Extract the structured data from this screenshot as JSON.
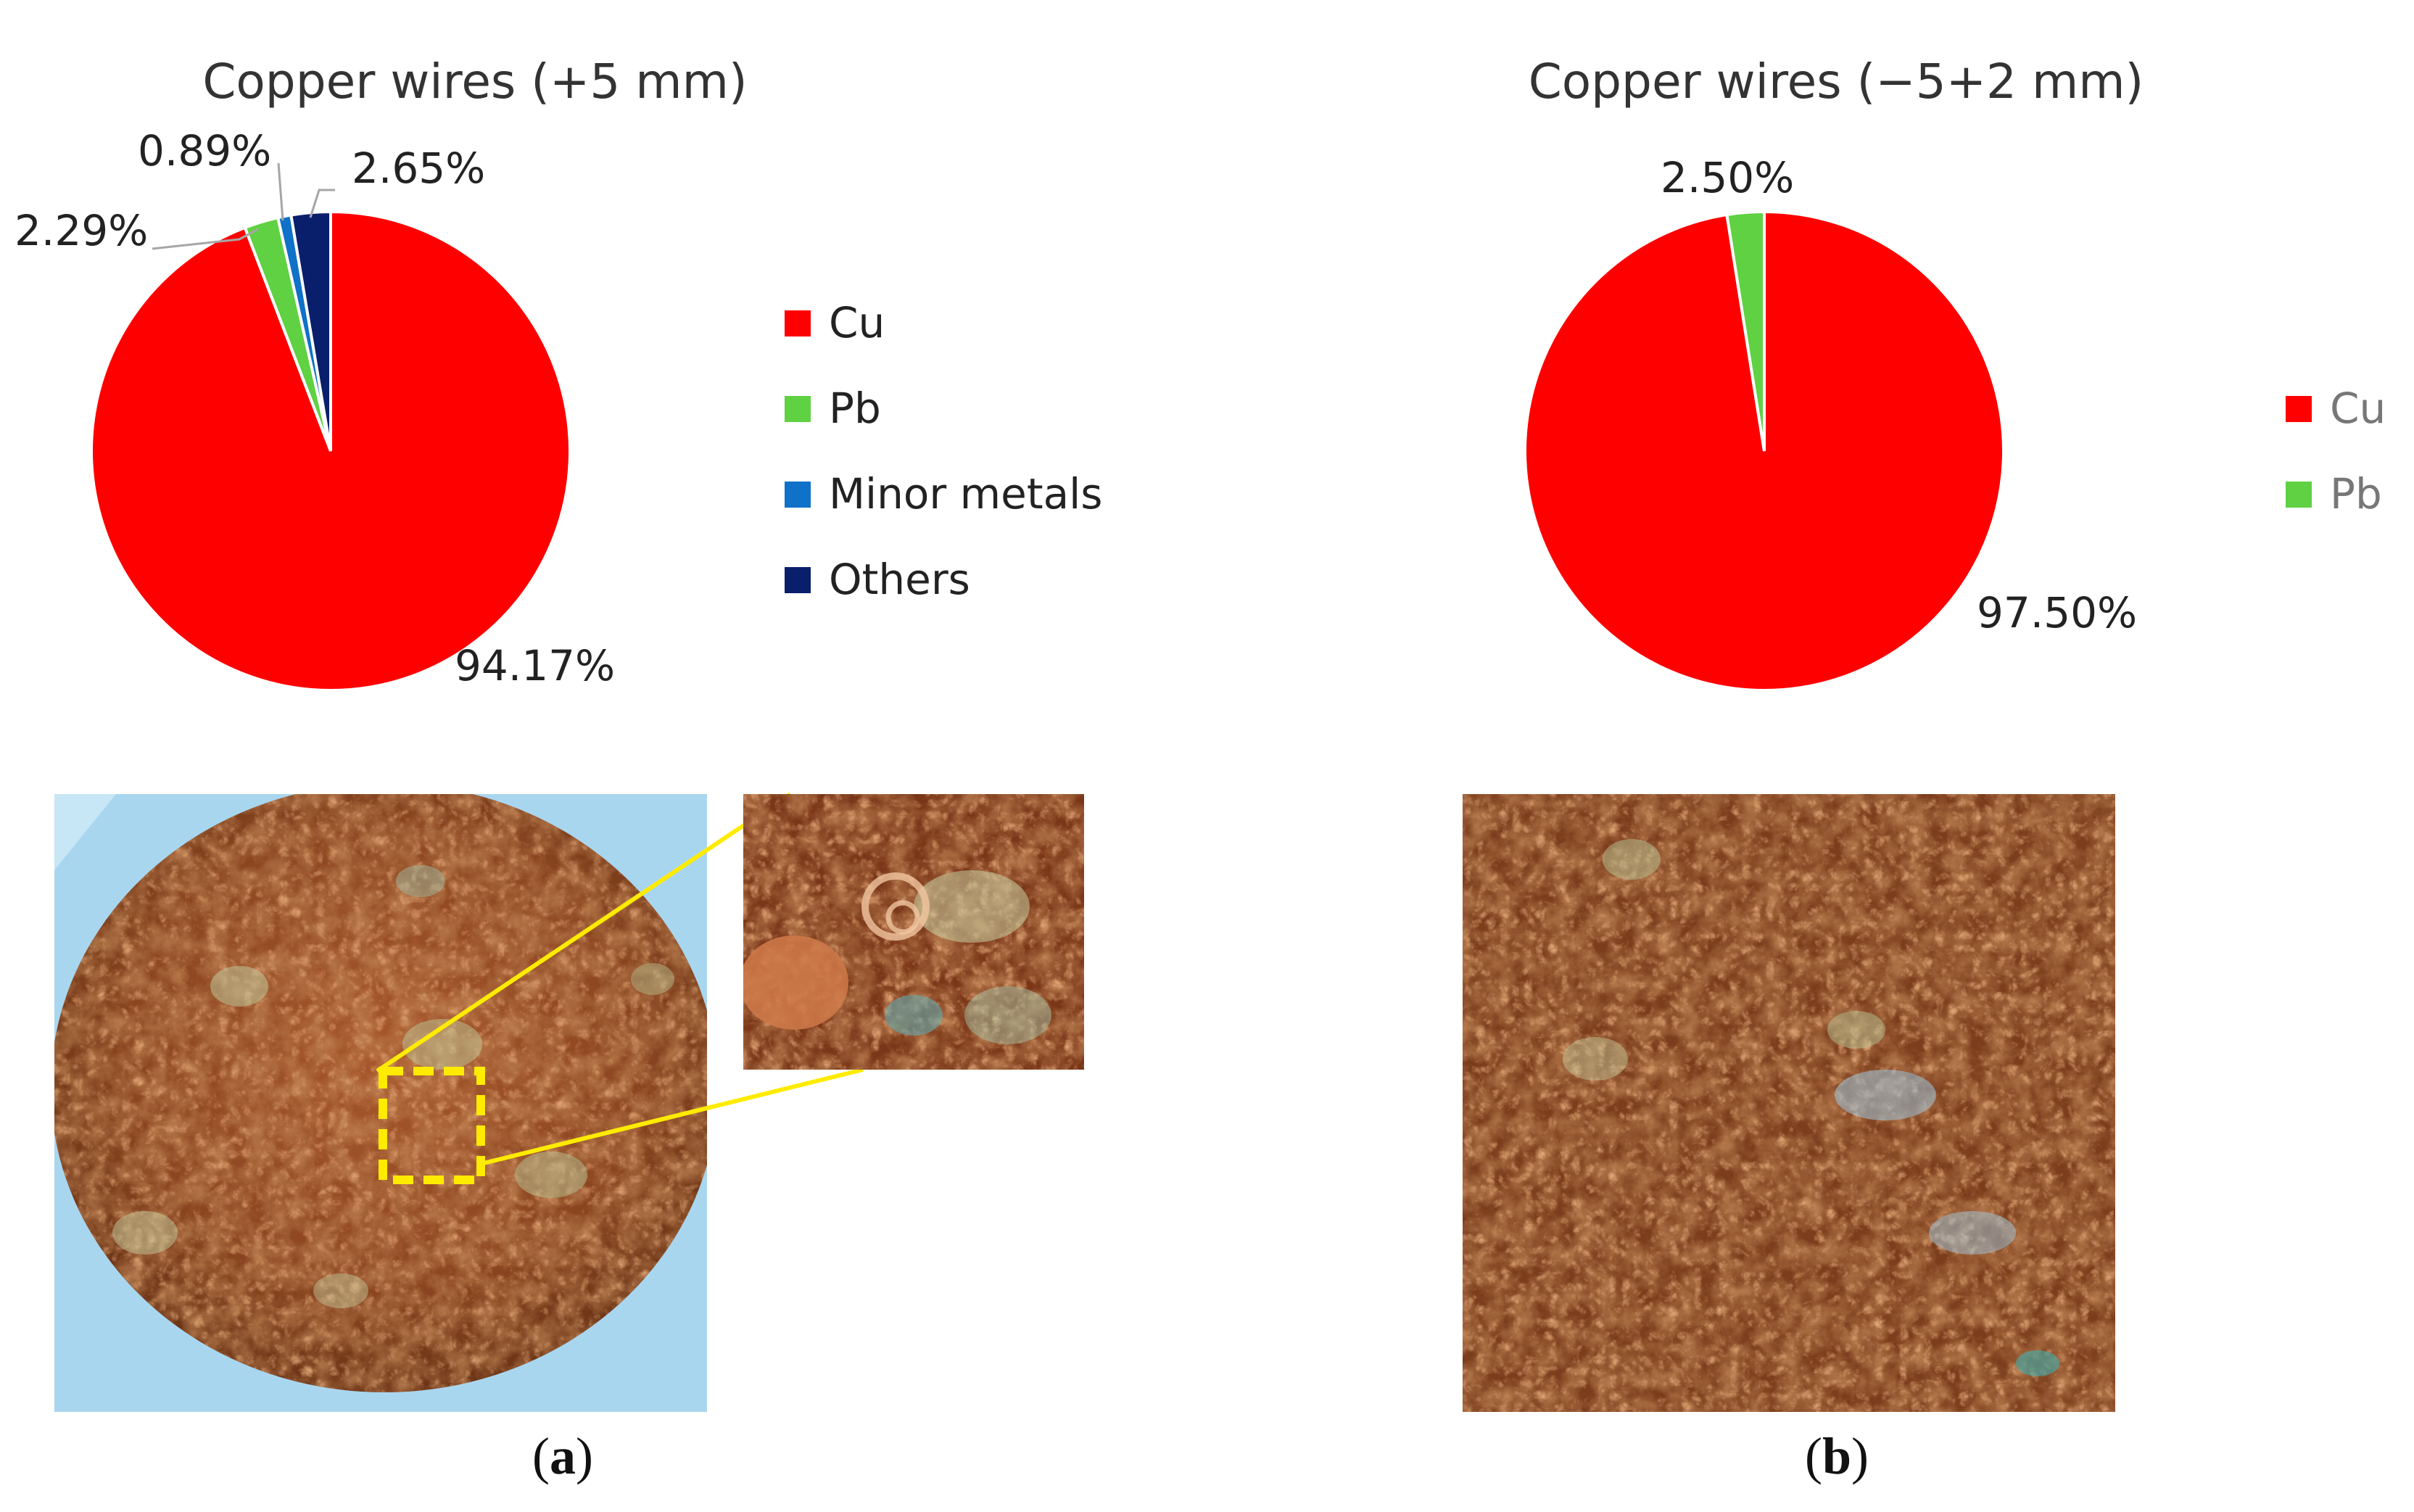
{
  "chart_data": [
    {
      "type": "pie",
      "title": "Copper wires (+5 mm)",
      "categories": [
        "Cu",
        "Pb",
        "Minor metals",
        "Others"
      ],
      "values": [
        94.17,
        2.29,
        0.89,
        2.65
      ],
      "data_labels": [
        "94.17%",
        "2.29%",
        "0.89%",
        "2.65%"
      ],
      "colors": [
        "#ff0000",
        "#5fd143",
        "#0f71c7",
        "#0a1f6b"
      ],
      "legend": [
        "Cu",
        "Pb",
        "Minor metals",
        "Others"
      ],
      "legend_position": "right"
    },
    {
      "type": "pie",
      "title": "Copper wires (−5+2 mm)",
      "categories": [
        "Cu",
        "Pb"
      ],
      "values": [
        97.5,
        2.5
      ],
      "data_labels": [
        "97.50%",
        "2.50%"
      ],
      "colors": [
        "#ff0000",
        "#5fd143"
      ],
      "legend": [
        "Cu",
        "Pb"
      ],
      "legend_position": "right"
    }
  ],
  "panels": {
    "a": {
      "open": "(",
      "letter": "a",
      "close": ")"
    },
    "b": {
      "open": "(",
      "letter": "b",
      "close": ")"
    }
  },
  "photos": {
    "a_main": "photo of tangled copper wire pile with yellow dashed inset box",
    "a_zoom": "magnified inset of copper wires",
    "b_main": "photo of tangled fine copper wires"
  }
}
